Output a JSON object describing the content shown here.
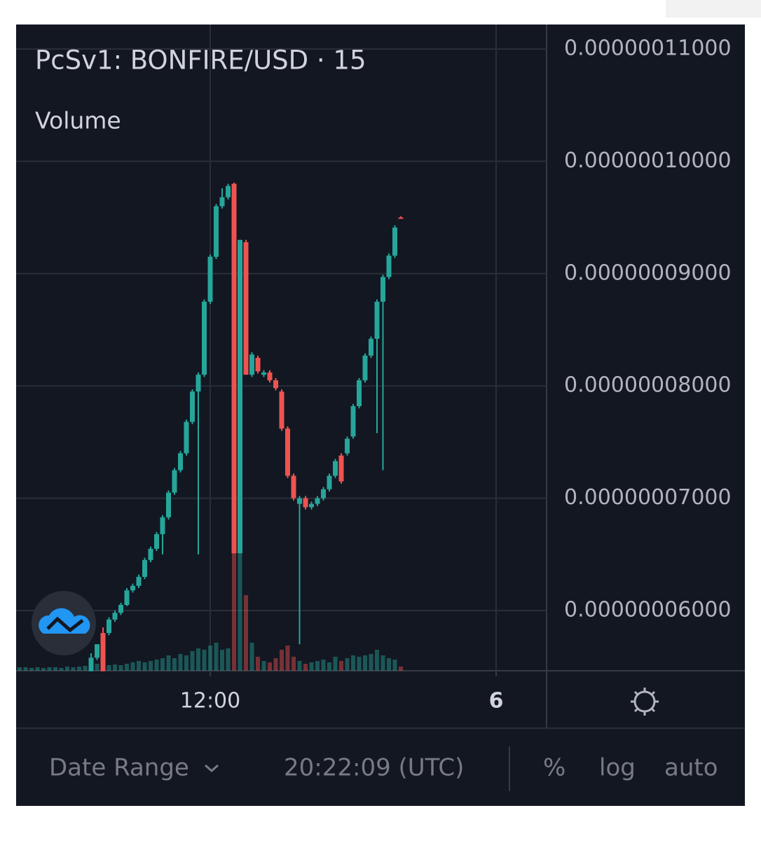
{
  "chart_data": {
    "type": "candlestick",
    "title": "PcSv1: BONFIRE/USD · 15",
    "volume_name": "Volume",
    "up_color": "#26a69a",
    "down_color": "#ef5350",
    "grid": true,
    "ylim": [
      5.464e-08,
      1.1218e-07
    ],
    "yticks": [
      {
        "value": 1.1e-07,
        "label": "0.00000011000"
      },
      {
        "value": 1e-07,
        "label": "0.00000010000"
      },
      {
        "value": 9e-08,
        "label": "0.00000009000"
      },
      {
        "value": 8e-08,
        "label": "0.00000008000"
      },
      {
        "value": 7e-08,
        "label": "0.00000007000"
      },
      {
        "value": 6e-08,
        "label": "0.00000006000"
      }
    ],
    "categories": [
      null,
      null,
      null,
      null,
      null,
      null,
      null,
      null,
      null,
      null,
      null,
      null,
      null,
      null,
      null,
      null,
      null,
      null,
      null,
      null,
      null,
      null,
      null,
      null,
      null,
      null,
      null,
      null,
      null,
      null,
      null,
      null,
      "12:00",
      null,
      null,
      null,
      null,
      null,
      null,
      null,
      null,
      null,
      null,
      null,
      null,
      null,
      null,
      null,
      null,
      null,
      null,
      null,
      null,
      null,
      null,
      null,
      null,
      null,
      null,
      null,
      null,
      null,
      null,
      null,
      null,
      null,
      null,
      null,
      null,
      null,
      null,
      null,
      null,
      null,
      null,
      null,
      null,
      null,
      null,
      null,
      "6"
    ],
    "open": [
      null,
      null,
      null,
      null,
      null,
      null,
      null,
      null,
      null,
      null,
      null,
      null,
      5.46e-08,
      5.58e-08,
      5.8e-08,
      5.8e-08,
      5.92e-08,
      5.98e-08,
      6.05e-08,
      6.18e-08,
      6.22e-08,
      6.3e-08,
      6.45e-08,
      6.55e-08,
      6.68e-08,
      6.83e-08,
      7.05e-08,
      7.25e-08,
      7.4e-08,
      7.68e-08,
      7.95e-08,
      8.1e-08,
      8.75e-08,
      9.15e-08,
      9.6e-08,
      9.68e-08,
      9.8e-08,
      6.51e-08,
      9.28e-08,
      8.1e-08,
      8.25e-08,
      8.1e-08,
      8.12e-08,
      8.05e-08,
      7.95e-08,
      7.62e-08,
      7.2e-08,
      6.95e-08,
      7e-08,
      6.92e-08,
      6.95e-08,
      7e-08,
      7.08e-08,
      7.2e-08,
      7.38e-08,
      7.4e-08,
      7.55e-08,
      7.82e-08,
      8.05e-08,
      8.27e-08,
      8.42e-08,
      8.75e-08,
      8.97e-08,
      9.16e-08,
      9.5e-08,
      null,
      null,
      null,
      null,
      null,
      null,
      null,
      null,
      null,
      null,
      null,
      null,
      null,
      null,
      null,
      null
    ],
    "high": [
      null,
      null,
      null,
      null,
      null,
      null,
      null,
      null,
      null,
      null,
      null,
      null,
      5.62e-08,
      5.7e-08,
      5.85e-08,
      5.94e-08,
      6e-08,
      6.07e-08,
      6.2e-08,
      6.24e-08,
      6.32e-08,
      6.47e-08,
      6.57e-08,
      6.7e-08,
      6.85e-08,
      7.07e-08,
      7.27e-08,
      7.42e-08,
      7.7e-08,
      7.97e-08,
      8.12e-08,
      8.77e-08,
      9.17e-08,
      9.62e-08,
      9.76e-08,
      9.8e-08,
      9.81e-08,
      9.3e-08,
      9.3e-08,
      8.3e-08,
      8.27e-08,
      8.14e-08,
      8.14e-08,
      8.07e-08,
      7.97e-08,
      7.64e-08,
      7.22e-08,
      7.02e-08,
      7.02e-08,
      6.97e-08,
      7.02e-08,
      7.1e-08,
      7.22e-08,
      7.35e-08,
      7.4e-08,
      7.55e-08,
      7.84e-08,
      8.07e-08,
      8.29e-08,
      8.44e-08,
      8.77e-08,
      8.99e-08,
      9.18e-08,
      9.43e-08,
      9.51e-08,
      null,
      null,
      null,
      null,
      null,
      null,
      null,
      null,
      null,
      null,
      null,
      null,
      null,
      null,
      null,
      null
    ],
    "low": [
      null,
      null,
      null,
      null,
      null,
      null,
      null,
      null,
      null,
      null,
      null,
      null,
      5.46e-08,
      5.56e-08,
      5.46e-08,
      5.78e-08,
      5.9e-08,
      5.96e-08,
      6.04e-08,
      6.16e-08,
      6.2e-08,
      6.28e-08,
      6.43e-08,
      6.53e-08,
      6.5e-08,
      6.81e-08,
      7.03e-08,
      7.23e-08,
      7.38e-08,
      7.66e-08,
      6.5e-08,
      8.08e-08,
      8.73e-08,
      9.13e-08,
      9.58e-08,
      9.66e-08,
      6.51e-08,
      6.51e-08,
      8.1e-08,
      8.08e-08,
      8.11e-08,
      8.08e-08,
      8.03e-08,
      7.96e-08,
      7.6e-08,
      7.18e-08,
      6.98e-08,
      5.7e-08,
      6.9e-08,
      6.9e-08,
      6.93e-08,
      6.98e-08,
      7.06e-08,
      7.18e-08,
      7.13e-08,
      7.38e-08,
      7.53e-08,
      7.8e-08,
      8.03e-08,
      8.25e-08,
      7.58e-08,
      7.25e-08,
      8.95e-08,
      9.14e-08,
      9.49e-08,
      null,
      null,
      null,
      null,
      null,
      null,
      null,
      null,
      null,
      null,
      null,
      null,
      null,
      null,
      null,
      null
    ],
    "close": [
      null,
      null,
      null,
      null,
      null,
      null,
      null,
      null,
      null,
      null,
      null,
      null,
      5.58e-08,
      5.7e-08,
      5.46e-08,
      5.92e-08,
      5.98e-08,
      6.05e-08,
      6.18e-08,
      6.22e-08,
      6.3e-08,
      6.45e-08,
      6.55e-08,
      6.68e-08,
      6.83e-08,
      7.05e-08,
      7.25e-08,
      7.4e-08,
      7.68e-08,
      7.95e-08,
      8.1e-08,
      8.75e-08,
      9.15e-08,
      9.6e-08,
      9.68e-08,
      9.78e-08,
      6.51e-08,
      9.3e-08,
      8.1e-08,
      8.28e-08,
      8.13e-08,
      8.12e-08,
      8.05e-08,
      7.98e-08,
      7.62e-08,
      7.2e-08,
      7e-08,
      7e-08,
      6.92e-08,
      6.95e-08,
      7e-08,
      7.08e-08,
      7.2e-08,
      7.33e-08,
      7.15e-08,
      7.53e-08,
      7.82e-08,
      8.05e-08,
      8.27e-08,
      8.42e-08,
      8.75e-08,
      8.97e-08,
      9.16e-08,
      9.41e-08,
      9.49e-08,
      null,
      null,
      null,
      null,
      null,
      null,
      null,
      null,
      null,
      null,
      null,
      null,
      null,
      null,
      null,
      null
    ],
    "volume": [
      5,
      5,
      4,
      5,
      4,
      5,
      5,
      4,
      6,
      5,
      6,
      7,
      12,
      10,
      18,
      8,
      9,
      8,
      10,
      12,
      14,
      12,
      14,
      16,
      18,
      22,
      18,
      24,
      22,
      28,
      32,
      30,
      36,
      40,
      30,
      32,
      168,
      168,
      108,
      40,
      20,
      14,
      12,
      18,
      30,
      36,
      20,
      14,
      10,
      12,
      14,
      16,
      12,
      20,
      14,
      18,
      22,
      20,
      22,
      24,
      30,
      22,
      18,
      16,
      6,
      null,
      null,
      null,
      null,
      null,
      null,
      null,
      null,
      null,
      null,
      null,
      null,
      null,
      null,
      null,
      null
    ]
  },
  "toolbar": {
    "date_range": "Date Range",
    "clock": "20:22:09 (UTC)",
    "percent": "%",
    "log": "log",
    "auto": "auto"
  }
}
